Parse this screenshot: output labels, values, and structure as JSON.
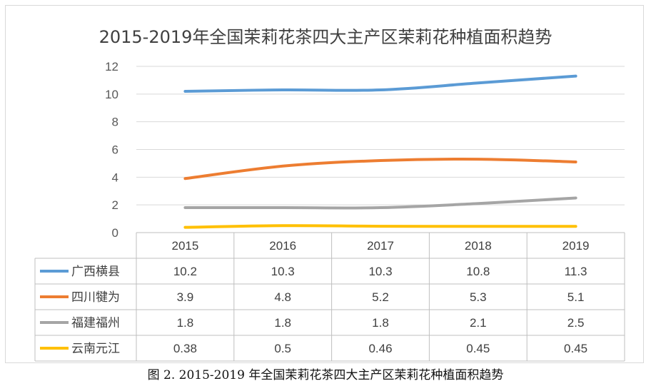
{
  "caption": "图 2. 2015-2019 年全国茉莉花茶四大主产区茉莉花种植面积趋势",
  "chart_data": {
    "type": "line",
    "title": "2015-2019年全国茉莉花茶四大主产区茉莉花种植面积趋势",
    "categories": [
      "2015",
      "2016",
      "2017",
      "2018",
      "2019"
    ],
    "ylim": [
      0,
      12
    ],
    "yticks": [
      0,
      2,
      4,
      6,
      8,
      10,
      12
    ],
    "grid": true,
    "legend": "data-table",
    "series": [
      {
        "name": "广西横县",
        "color": "#5b9bd5",
        "values": [
          10.2,
          10.3,
          10.3,
          10.8,
          11.3
        ],
        "labels": [
          "10.2",
          "10.3",
          "10.3",
          "10.8",
          "11.3"
        ]
      },
      {
        "name": "四川犍为",
        "color": "#ed7d31",
        "values": [
          3.9,
          4.8,
          5.2,
          5.3,
          5.1
        ],
        "labels": [
          "3.9",
          "4.8",
          "5.2",
          "5.3",
          "5.1"
        ]
      },
      {
        "name": "福建福州",
        "color": "#a5a5a5",
        "values": [
          1.8,
          1.8,
          1.8,
          2.1,
          2.5
        ],
        "labels": [
          "1.8",
          "1.8",
          "1.8",
          "2.1",
          "2.5"
        ]
      },
      {
        "name": "云南元江",
        "color": "#ffc000",
        "values": [
          0.38,
          0.5,
          0.46,
          0.45,
          0.45
        ],
        "labels": [
          "0.38",
          "0.5",
          "0.46",
          "0.45",
          "0.45"
        ]
      }
    ]
  }
}
